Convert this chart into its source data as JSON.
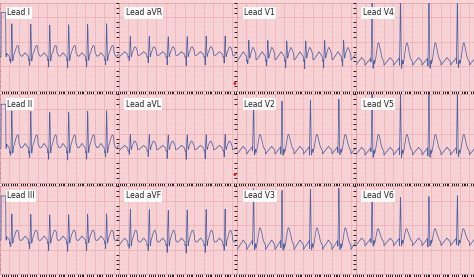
{
  "bg_color": "#f9d5d8",
  "grid_major_color": "#e8a8b0",
  "grid_minor_color": "#f0c4c8",
  "ecg_color": "#5060a0",
  "label_bg": "#ffffff",
  "label_color": "#222222",
  "label_fontsize": 5.5,
  "row_labels": [
    [
      "Lead I",
      "Lead aVR",
      "Lead V1",
      "Lead V4"
    ],
    [
      "Lead II",
      "Lead aVL",
      "Lead V2",
      "Lead V5"
    ],
    [
      "Lead III",
      "Lead aVF",
      "Lead V3",
      "Lead V6"
    ]
  ],
  "dot_color": "#cc2222",
  "border_color": "#d09098"
}
